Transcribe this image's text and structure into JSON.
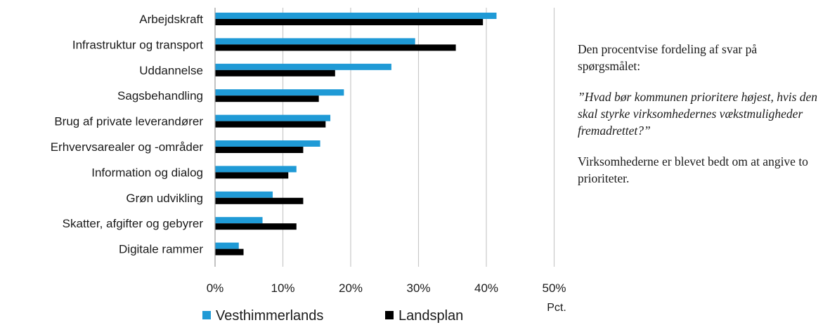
{
  "chart_data": {
    "type": "bar",
    "orientation": "horizontal",
    "categories": [
      "Arbejdskraft",
      "Infrastruktur og transport",
      "Uddannelse",
      "Sagsbehandling",
      "Brug af private leverandører",
      "Erhvervsarealer og -områder",
      "Information og dialog",
      "Grøn udvikling",
      "Skatter, afgifter og gebyrer",
      "Digitale rammer"
    ],
    "series": [
      {
        "name": "Vesthimmerlands",
        "color": "#1f9ad6",
        "values": [
          41.5,
          29.5,
          26.0,
          19.0,
          17.0,
          15.5,
          12.0,
          8.5,
          7.0,
          3.5
        ]
      },
      {
        "name": "Landsplan",
        "color": "#000000",
        "values": [
          39.5,
          35.5,
          17.7,
          15.3,
          16.3,
          13.0,
          10.8,
          13.0,
          12.0,
          4.2
        ]
      }
    ],
    "xlim": [
      0,
      50
    ],
    "xticks": [
      "0%",
      "10%",
      "20%",
      "30%",
      "40%",
      "50%"
    ],
    "xtick_values": [
      0,
      10,
      20,
      30,
      40,
      50
    ],
    "xlabel": "Pct.",
    "grid": "vertical",
    "legend_position": "bottom"
  },
  "note": {
    "intro": "Den procentvise fordeling af svar på spørgsmålet:",
    "question": "”Hvad bør kommunen prioritere højest, hvis den skal styrke virksomhedernes vækstmuligheder fremadrettet?”",
    "outro": "Virksomhederne er blevet bedt om at angive to prioriteter."
  }
}
